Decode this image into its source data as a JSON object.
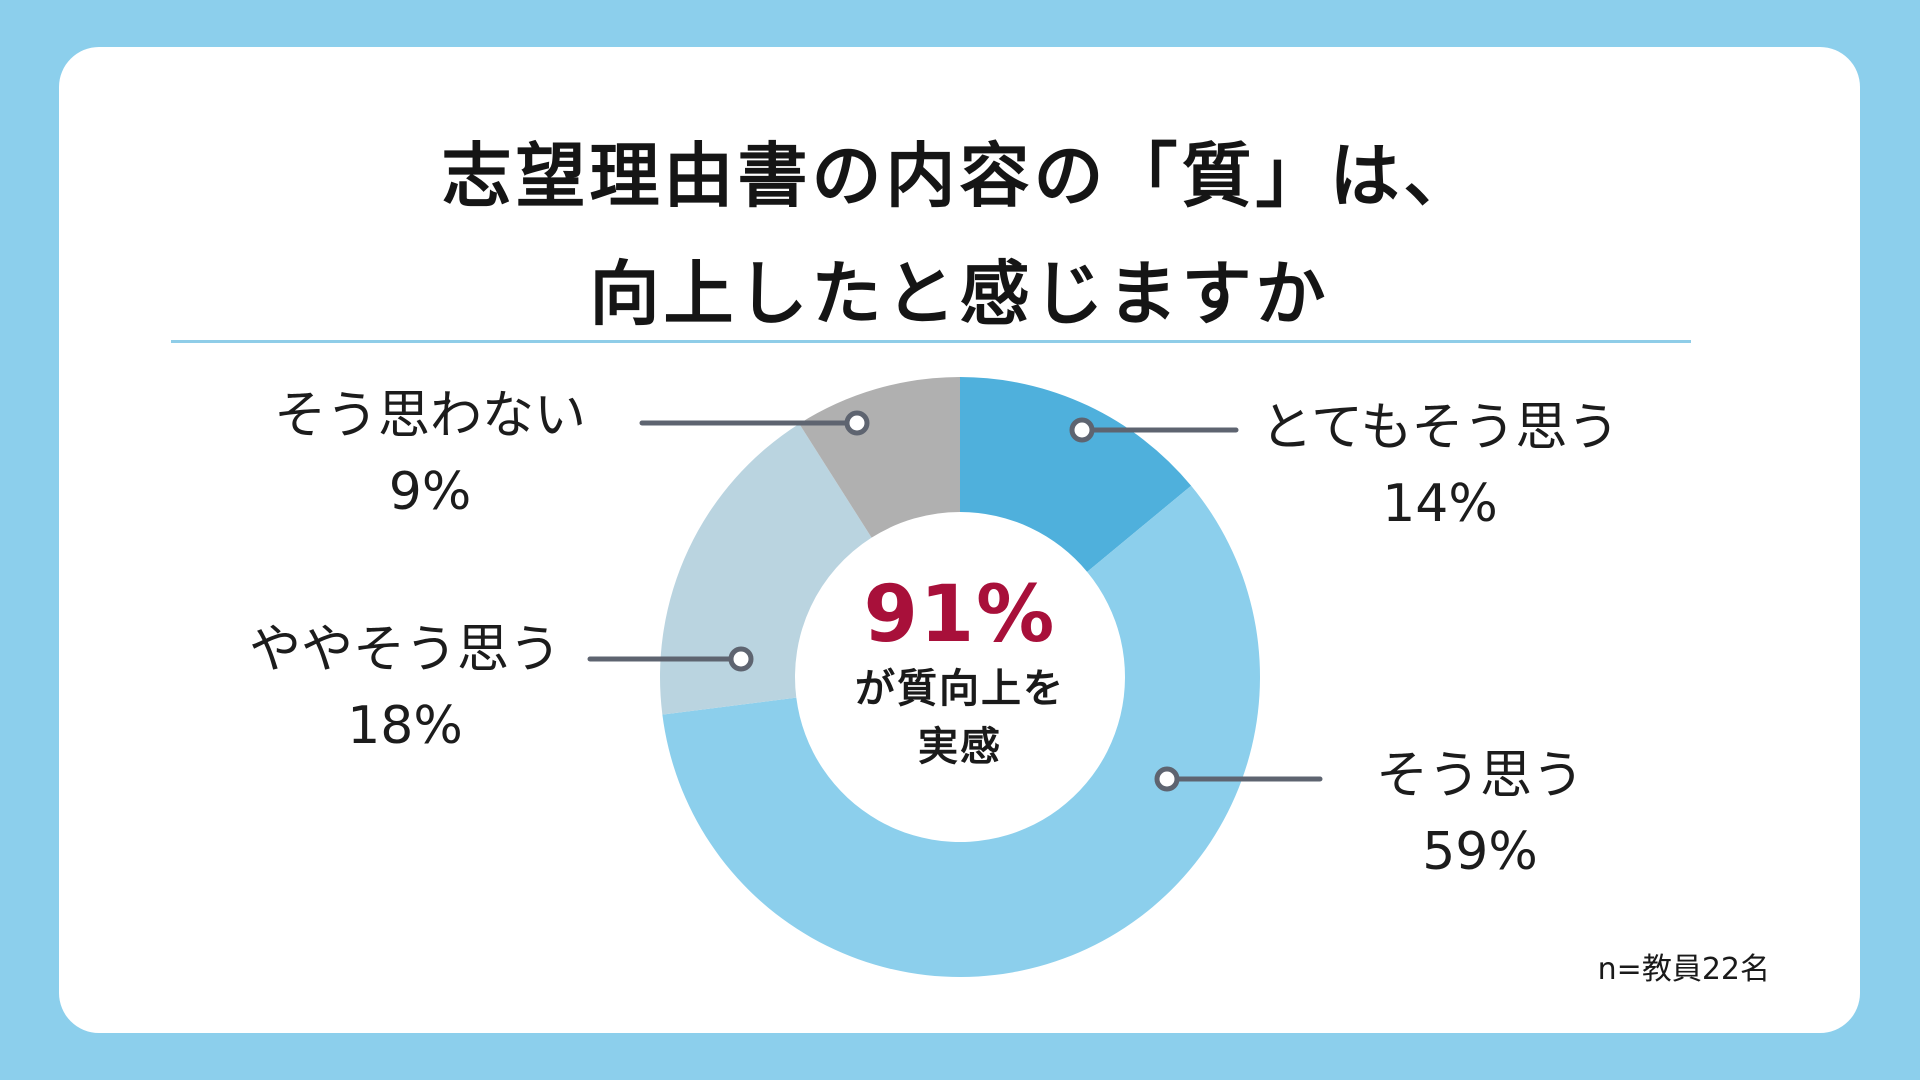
{
  "title": {
    "line1": "志望理由書の内容の「質」は、",
    "line2": "向上したと感じますか"
  },
  "center": {
    "percent": "91%",
    "line1": "が質向上を",
    "line2": "実感"
  },
  "note": "n=教員22名",
  "colors": {
    "background": "#8ccfec",
    "card": "#ffffff",
    "divider": "#8fcde8",
    "leader": "#5e6470",
    "accent": "#a8103a"
  },
  "chart_data": {
    "type": "pie",
    "donut": true,
    "title": "",
    "slices": [
      {
        "label": "とてもそう思う",
        "value": 14,
        "value_label": "14%",
        "color": "#4fb0dc"
      },
      {
        "label": "そう思う",
        "value": 59,
        "value_label": "59%",
        "color": "#8ccfec"
      },
      {
        "label": "ややそう思う",
        "value": 18,
        "value_label": "18%",
        "color": "#bad4e0"
      },
      {
        "label": "そう思わない",
        "value": 9,
        "value_label": "9%",
        "color": "#b0b0b0"
      }
    ]
  }
}
